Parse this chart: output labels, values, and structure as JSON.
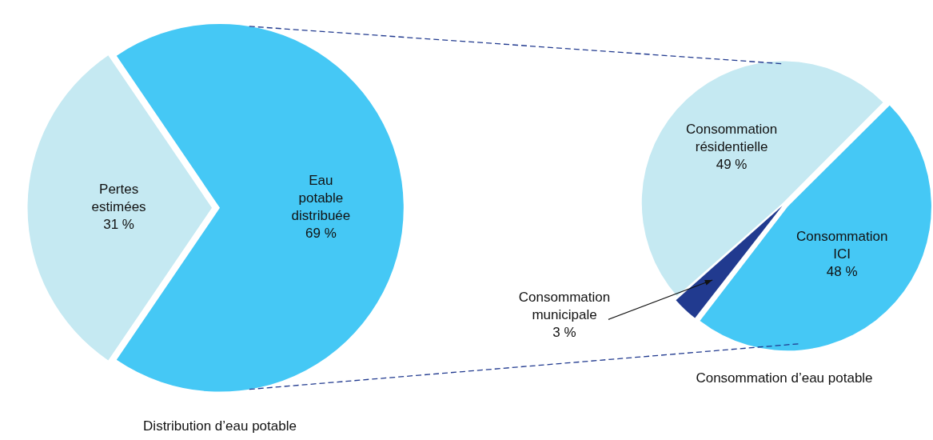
{
  "chart_data": [
    {
      "type": "pie",
      "title": "Distribution d’eau potable",
      "categories": [
        "Pertes estimées",
        "Eau potable distribuée"
      ],
      "values": [
        31,
        69
      ],
      "colors": [
        "#c5e9f2",
        "#45c8f5"
      ],
      "value_labels": [
        "31 %",
        "69 %"
      ],
      "legend": false
    },
    {
      "type": "pie",
      "title": "Consommation d’eau potable",
      "categories": [
        "Consommation résidentielle",
        "Consommation ICI",
        "Consommation municipale"
      ],
      "values": [
        49,
        48,
        3
      ],
      "colors": [
        "#c5e9f2",
        "#45c8f5",
        "#213a8f"
      ],
      "value_labels": [
        "49 %",
        "48 %",
        "3 %"
      ],
      "legend": false
    }
  ]
}
